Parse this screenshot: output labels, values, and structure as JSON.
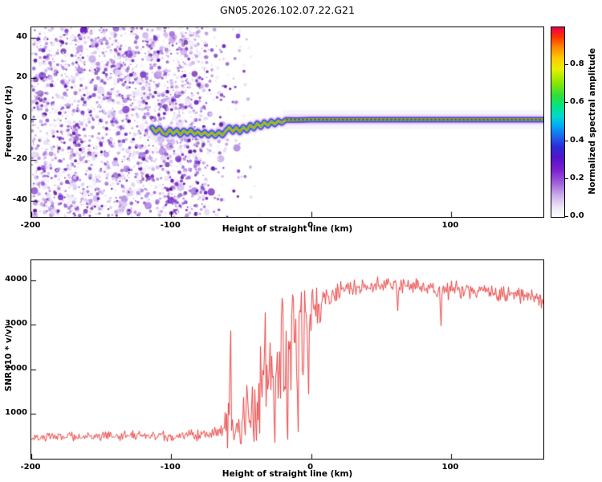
{
  "title": "GN05.2026.102.07.22.G21",
  "page": {
    "background": "#ffffff",
    "axis_color": "#000000"
  },
  "chart_data": [
    {
      "type": "heatmap",
      "name": "spectrogram",
      "xlabel": "Height of straight line (km)",
      "ylabel": "Frequency (Hz)",
      "xlim": [
        -200,
        166
      ],
      "ylim": [
        -48,
        45
      ],
      "xticks": [
        -200,
        -100,
        0,
        100
      ],
      "yticks": [
        -40,
        -20,
        0,
        20,
        40
      ],
      "colorbar": {
        "label": "Normalized spectral amplitude",
        "ticks": [
          "0.0",
          "0.2",
          "0.4",
          "0.6",
          "0.8"
        ],
        "tick_values": [
          0,
          0.2,
          0.4,
          0.6,
          0.8
        ],
        "range": [
          0,
          1
        ],
        "gradient_stops": [
          [
            0.0,
            "#fdfcfe"
          ],
          [
            0.05,
            "#efe7f8"
          ],
          [
            0.11,
            "#cdb2ea"
          ],
          [
            0.18,
            "#9d5fd9"
          ],
          [
            0.25,
            "#7a1fd0"
          ],
          [
            0.31,
            "#5612c8"
          ],
          [
            0.37,
            "#2b2bd8"
          ],
          [
            0.43,
            "#1b6cf0"
          ],
          [
            0.48,
            "#00aaf5"
          ],
          [
            0.53,
            "#00d8d0"
          ],
          [
            0.58,
            "#00e48a"
          ],
          [
            0.64,
            "#2ede3a"
          ],
          [
            0.71,
            "#8fe800"
          ],
          [
            0.78,
            "#e8f000"
          ],
          [
            0.84,
            "#ffc800"
          ],
          [
            0.9,
            "#ff8000"
          ],
          [
            0.95,
            "#ff3000"
          ],
          [
            1.0,
            "#e8004f"
          ]
        ]
      },
      "noise": {
        "x_range": [
          -200,
          -74
        ],
        "fade_end": -36,
        "palette": [
          "#f1eafb",
          "#e3d4f6",
          "#cdb2ee",
          "#b48ae4",
          "#9a63d8",
          "#7f3bcd",
          "#6716c2",
          "#55089e"
        ],
        "blob_count": 3600
      },
      "trace": {
        "points": [
          [
            -113.5,
            -4.2
          ],
          [
            -111,
            -6.5
          ],
          [
            -108.5,
            -4.5
          ],
          [
            -106,
            -6.8
          ],
          [
            -103.5,
            -7.6
          ],
          [
            -101,
            -5.2
          ],
          [
            -98.5,
            -7.2
          ],
          [
            -96,
            -5.4
          ],
          [
            -93.5,
            -7.8
          ],
          [
            -91,
            -5.6
          ],
          [
            -88.5,
            -7.2
          ],
          [
            -86,
            -5.4
          ],
          [
            -83.5,
            -7.6
          ],
          [
            -81,
            -6.2
          ],
          [
            -78.5,
            -7.9
          ],
          [
            -76,
            -6.4
          ],
          [
            -73.5,
            -8.1
          ],
          [
            -71,
            -6.6
          ],
          [
            -68.5,
            -8.3
          ],
          [
            -66,
            -6.4
          ],
          [
            -63.5,
            -8.0
          ],
          [
            -61,
            -5.8
          ],
          [
            -58.5,
            -4.0
          ],
          [
            -56,
            -6.2
          ],
          [
            -53.5,
            -4.1
          ],
          [
            -51,
            -6.4
          ],
          [
            -48.5,
            -3.9
          ],
          [
            -46,
            -5.6
          ],
          [
            -43.5,
            -2.9
          ],
          [
            -41,
            -4.6
          ],
          [
            -38.5,
            -2.1
          ],
          [
            -36,
            -3.9
          ],
          [
            -33.5,
            -1.6
          ],
          [
            -31,
            -3.2
          ],
          [
            -28.5,
            -1.1
          ],
          [
            -26,
            -2.6
          ],
          [
            -23.5,
            -0.8
          ],
          [
            -21,
            -1.9
          ],
          [
            -18,
            -0.4
          ],
          [
            -10,
            -0.5
          ],
          [
            0,
            -0.3
          ],
          [
            166,
            -0.3
          ]
        ],
        "flat_from": -18,
        "flat_freq": -0.3,
        "layers": [
          [
            "#efe2fb",
            13,
            0.55
          ],
          [
            "#c9a6ee",
            9.5,
            0.7
          ],
          [
            "#6a2bd0",
            7,
            0.8
          ],
          [
            "#2b46e0",
            5.2,
            0.9
          ],
          [
            "#00c3ee",
            3.8,
            0.95
          ],
          [
            "#2ede3a",
            2.7,
            1
          ],
          [
            "#f5ee00",
            1.8,
            1
          ],
          [
            "#f03a10",
            1.0,
            1
          ]
        ],
        "core_dash_color": "#8b0000"
      }
    },
    {
      "type": "line",
      "name": "snr",
      "xlabel": "Height of straight line (km)",
      "ylabel": "SNR (10 * v/v)",
      "xlim": [
        -200,
        166
      ],
      "ylim": [
        0,
        4450
      ],
      "xticks": [
        -200,
        -100,
        0,
        100
      ],
      "yticks": [
        1000,
        2000,
        3000,
        4000
      ],
      "series": [
        {
          "name": "SNR",
          "color": "#e93434",
          "envelope_anchors": [
            [
              -200,
              500,
              140
            ],
            [
              -100,
              510,
              140
            ],
            [
              -80,
              530,
              150
            ],
            [
              -70,
              560,
              200
            ],
            [
              -63,
              620,
              280
            ],
            [
              -58,
              900,
              900
            ],
            [
              -55,
              650,
              350
            ],
            [
              -52,
              800,
              500
            ],
            [
              -48,
              900,
              700
            ],
            [
              -44,
              1000,
              800
            ],
            [
              -40,
              1200,
              1000
            ],
            [
              -36,
              1400,
              1200
            ],
            [
              -32,
              1600,
              1300
            ],
            [
              -28,
              1700,
              1400
            ],
            [
              -24,
              1900,
              1500
            ],
            [
              -20,
              2100,
              1500
            ],
            [
              -16,
              2300,
              1400
            ],
            [
              -12,
              2500,
              1300
            ],
            [
              -8,
              2700,
              1200
            ],
            [
              -4,
              2950,
              1000
            ],
            [
              0,
              3150,
              850
            ],
            [
              5,
              3350,
              650
            ],
            [
              10,
              3500,
              500
            ],
            [
              15,
              3650,
              380
            ],
            [
              20,
              3750,
              300
            ],
            [
              30,
              3850,
              230
            ],
            [
              40,
              3900,
              200
            ],
            [
              55,
              3920,
              190
            ],
            [
              70,
              3880,
              200
            ],
            [
              85,
              3840,
              240
            ],
            [
              95,
              3800,
              320
            ],
            [
              105,
              3790,
              240
            ],
            [
              120,
              3760,
              210
            ],
            [
              135,
              3700,
              200
            ],
            [
              150,
              3640,
              200
            ],
            [
              166,
              3570,
              220
            ]
          ],
          "extremes": [
            [
              -57.5,
              2870
            ],
            [
              -50,
              330
            ],
            [
              -46,
              1650
            ],
            [
              -41,
              380
            ],
            [
              -33,
              3280
            ],
            [
              -29.5,
              2600
            ],
            [
              -26,
              360
            ],
            [
              -21,
              3600
            ],
            [
              -17,
              430
            ],
            [
              -13.5,
              3680
            ],
            [
              -9,
              600
            ],
            [
              -7,
              3740
            ],
            [
              -2,
              1450
            ],
            [
              62,
              3320
            ],
            [
              93,
              2980
            ]
          ]
        }
      ]
    }
  ]
}
